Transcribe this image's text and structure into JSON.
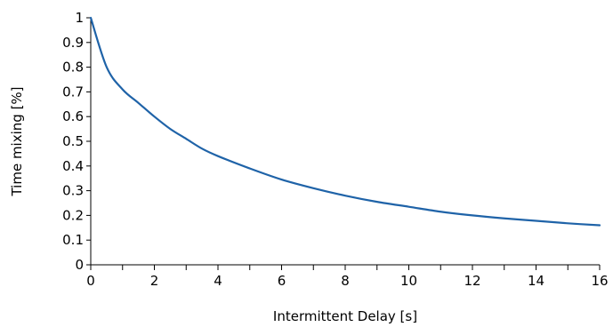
{
  "chart_data": {
    "type": "line",
    "title": "",
    "xlabel": "Intermittent Delay [s]",
    "ylabel": "Time mixing [%]",
    "xlim": [
      0,
      16
    ],
    "ylim": [
      0,
      1
    ],
    "x_ticks": [
      0,
      2,
      4,
      6,
      8,
      10,
      12,
      14,
      16
    ],
    "x_minor_ticks": [
      1,
      3,
      5,
      7,
      9,
      11,
      13,
      15
    ],
    "y_ticks": [
      0,
      0.1,
      0.2,
      0.3,
      0.4,
      0.5,
      0.6,
      0.7,
      0.8,
      0.9,
      1
    ],
    "x_tick_labels": [
      "0",
      "2",
      "4",
      "6",
      "8",
      "10",
      "12",
      "14",
      "16"
    ],
    "y_tick_labels": [
      "0",
      "0.1",
      "0.2",
      "0.3",
      "0.4",
      "0.5",
      "0.6",
      "0.7",
      "0.8",
      "0.9",
      "1"
    ],
    "grid": false,
    "legend": "none",
    "series": [
      {
        "color": "#1f63a8",
        "x": [
          0,
          0.5,
          1,
          1.5,
          2,
          2.5,
          3,
          3.5,
          4,
          5,
          6,
          7,
          8,
          9,
          10,
          11,
          12,
          13,
          14,
          15,
          16
        ],
        "y": [
          1.0,
          0.8,
          0.71,
          0.655,
          0.6,
          0.55,
          0.51,
          0.47,
          0.44,
          0.39,
          0.345,
          0.31,
          0.28,
          0.255,
          0.235,
          0.215,
          0.2,
          0.188,
          0.178,
          0.168,
          0.16
        ]
      }
    ]
  }
}
